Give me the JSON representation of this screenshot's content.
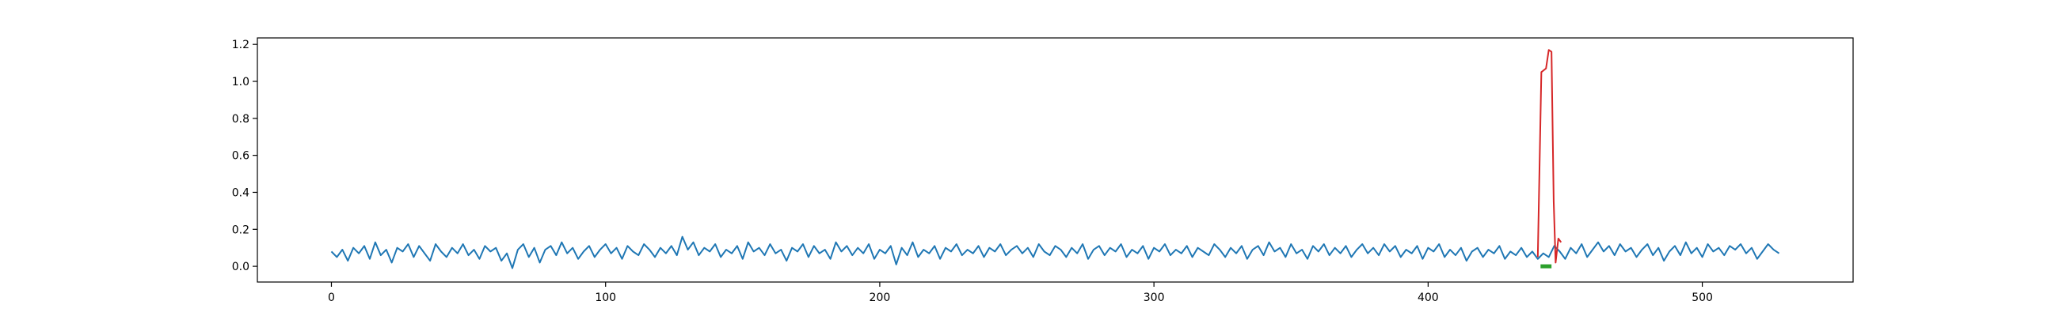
{
  "chart_data": {
    "type": "line",
    "title": "",
    "xlabel": "",
    "ylabel": "",
    "xlim": [
      -27,
      555
    ],
    "ylim": [
      -0.085,
      1.235
    ],
    "x_ticks": [
      0,
      100,
      200,
      300,
      400,
      500
    ],
    "y_ticks": [
      0.0,
      0.2,
      0.4,
      0.6,
      0.8,
      1.0,
      1.2
    ],
    "x_tick_labels": [
      "0",
      "100",
      "200",
      "300",
      "400",
      "500"
    ],
    "y_tick_labels": [
      "0.0",
      "0.2",
      "0.4",
      "0.6",
      "0.8",
      "1.0",
      "1.2"
    ],
    "grid": false,
    "legend": null,
    "colors": {
      "baseline": "#1f77b4",
      "anomaly": "#d62728",
      "marker": "#2ca02c"
    },
    "series": [
      {
        "color": "#1f77b4",
        "x_range": [
          0,
          528
        ],
        "noise_mean": 0.075,
        "noise_min": -0.01,
        "noise_max": 0.16,
        "points": [
          [
            0,
            0.08
          ],
          [
            2,
            0.05
          ],
          [
            4,
            0.09
          ],
          [
            6,
            0.03
          ],
          [
            8,
            0.1
          ],
          [
            10,
            0.07
          ],
          [
            12,
            0.11
          ],
          [
            14,
            0.04
          ],
          [
            16,
            0.13
          ],
          [
            18,
            0.06
          ],
          [
            20,
            0.09
          ],
          [
            22,
            0.02
          ],
          [
            24,
            0.1
          ],
          [
            26,
            0.08
          ],
          [
            28,
            0.12
          ],
          [
            30,
            0.05
          ],
          [
            32,
            0.11
          ],
          [
            34,
            0.07
          ],
          [
            36,
            0.03
          ],
          [
            38,
            0.12
          ],
          [
            40,
            0.08
          ],
          [
            42,
            0.05
          ],
          [
            44,
            0.1
          ],
          [
            46,
            0.07
          ],
          [
            48,
            0.12
          ],
          [
            50,
            0.06
          ],
          [
            52,
            0.09
          ],
          [
            54,
            0.04
          ],
          [
            56,
            0.11
          ],
          [
            58,
            0.08
          ],
          [
            60,
            0.1
          ],
          [
            62,
            0.03
          ],
          [
            64,
            0.07
          ],
          [
            66,
            -0.01
          ],
          [
            68,
            0.09
          ],
          [
            70,
            0.12
          ],
          [
            72,
            0.05
          ],
          [
            74,
            0.1
          ],
          [
            76,
            0.02
          ],
          [
            78,
            0.09
          ],
          [
            80,
            0.11
          ],
          [
            82,
            0.06
          ],
          [
            84,
            0.13
          ],
          [
            86,
            0.07
          ],
          [
            88,
            0.1
          ],
          [
            90,
            0.04
          ],
          [
            92,
            0.08
          ],
          [
            94,
            0.11
          ],
          [
            96,
            0.05
          ],
          [
            98,
            0.09
          ],
          [
            100,
            0.12
          ],
          [
            102,
            0.07
          ],
          [
            104,
            0.1
          ],
          [
            106,
            0.04
          ],
          [
            108,
            0.11
          ],
          [
            110,
            0.08
          ],
          [
            112,
            0.06
          ],
          [
            114,
            0.12
          ],
          [
            116,
            0.09
          ],
          [
            118,
            0.05
          ],
          [
            120,
            0.1
          ],
          [
            122,
            0.07
          ],
          [
            124,
            0.11
          ],
          [
            126,
            0.06
          ],
          [
            128,
            0.16
          ],
          [
            130,
            0.09
          ],
          [
            132,
            0.13
          ],
          [
            134,
            0.06
          ],
          [
            136,
            0.1
          ],
          [
            138,
            0.08
          ],
          [
            140,
            0.12
          ],
          [
            142,
            0.05
          ],
          [
            144,
            0.09
          ],
          [
            146,
            0.07
          ],
          [
            148,
            0.11
          ],
          [
            150,
            0.04
          ],
          [
            152,
            0.13
          ],
          [
            154,
            0.08
          ],
          [
            156,
            0.1
          ],
          [
            158,
            0.06
          ],
          [
            160,
            0.12
          ],
          [
            162,
            0.07
          ],
          [
            164,
            0.09
          ],
          [
            166,
            0.03
          ],
          [
            168,
            0.1
          ],
          [
            170,
            0.08
          ],
          [
            172,
            0.12
          ],
          [
            174,
            0.05
          ],
          [
            176,
            0.11
          ],
          [
            178,
            0.07
          ],
          [
            180,
            0.09
          ],
          [
            182,
            0.04
          ],
          [
            184,
            0.13
          ],
          [
            186,
            0.08
          ],
          [
            188,
            0.11
          ],
          [
            190,
            0.06
          ],
          [
            192,
            0.1
          ],
          [
            194,
            0.07
          ],
          [
            196,
            0.12
          ],
          [
            198,
            0.04
          ],
          [
            200,
            0.09
          ],
          [
            202,
            0.07
          ],
          [
            204,
            0.11
          ],
          [
            206,
            0.01
          ],
          [
            208,
            0.1
          ],
          [
            210,
            0.06
          ],
          [
            212,
            0.13
          ],
          [
            214,
            0.05
          ],
          [
            216,
            0.09
          ],
          [
            218,
            0.07
          ],
          [
            220,
            0.11
          ],
          [
            222,
            0.04
          ],
          [
            224,
            0.1
          ],
          [
            226,
            0.08
          ],
          [
            228,
            0.12
          ],
          [
            230,
            0.06
          ],
          [
            232,
            0.09
          ],
          [
            234,
            0.07
          ],
          [
            236,
            0.11
          ],
          [
            238,
            0.05
          ],
          [
            240,
            0.1
          ],
          [
            242,
            0.08
          ],
          [
            244,
            0.12
          ],
          [
            246,
            0.06
          ],
          [
            248,
            0.09
          ],
          [
            250,
            0.11
          ],
          [
            252,
            0.07
          ],
          [
            254,
            0.1
          ],
          [
            256,
            0.05
          ],
          [
            258,
            0.12
          ],
          [
            260,
            0.08
          ],
          [
            262,
            0.06
          ],
          [
            264,
            0.11
          ],
          [
            266,
            0.09
          ],
          [
            268,
            0.05
          ],
          [
            270,
            0.1
          ],
          [
            272,
            0.07
          ],
          [
            274,
            0.12
          ],
          [
            276,
            0.04
          ],
          [
            278,
            0.09
          ],
          [
            280,
            0.11
          ],
          [
            282,
            0.06
          ],
          [
            284,
            0.1
          ],
          [
            286,
            0.08
          ],
          [
            288,
            0.12
          ],
          [
            290,
            0.05
          ],
          [
            292,
            0.09
          ],
          [
            294,
            0.07
          ],
          [
            296,
            0.11
          ],
          [
            298,
            0.04
          ],
          [
            300,
            0.1
          ],
          [
            302,
            0.08
          ],
          [
            304,
            0.12
          ],
          [
            306,
            0.06
          ],
          [
            308,
            0.09
          ],
          [
            310,
            0.07
          ],
          [
            312,
            0.11
          ],
          [
            314,
            0.05
          ],
          [
            316,
            0.1
          ],
          [
            318,
            0.08
          ],
          [
            320,
            0.06
          ],
          [
            322,
            0.12
          ],
          [
            324,
            0.09
          ],
          [
            326,
            0.05
          ],
          [
            328,
            0.1
          ],
          [
            330,
            0.07
          ],
          [
            332,
            0.11
          ],
          [
            334,
            0.04
          ],
          [
            336,
            0.09
          ],
          [
            338,
            0.11
          ],
          [
            340,
            0.06
          ],
          [
            342,
            0.13
          ],
          [
            344,
            0.08
          ],
          [
            346,
            0.1
          ],
          [
            348,
            0.05
          ],
          [
            350,
            0.12
          ],
          [
            352,
            0.07
          ],
          [
            354,
            0.09
          ],
          [
            356,
            0.04
          ],
          [
            358,
            0.11
          ],
          [
            360,
            0.08
          ],
          [
            362,
            0.12
          ],
          [
            364,
            0.06
          ],
          [
            366,
            0.1
          ],
          [
            368,
            0.07
          ],
          [
            370,
            0.11
          ],
          [
            372,
            0.05
          ],
          [
            374,
            0.09
          ],
          [
            376,
            0.12
          ],
          [
            378,
            0.07
          ],
          [
            380,
            0.1
          ],
          [
            382,
            0.06
          ],
          [
            384,
            0.12
          ],
          [
            386,
            0.08
          ],
          [
            388,
            0.11
          ],
          [
            390,
            0.05
          ],
          [
            392,
            0.09
          ],
          [
            394,
            0.07
          ],
          [
            396,
            0.11
          ],
          [
            398,
            0.04
          ],
          [
            400,
            0.1
          ],
          [
            402,
            0.08
          ],
          [
            404,
            0.12
          ],
          [
            406,
            0.05
          ],
          [
            408,
            0.09
          ],
          [
            410,
            0.06
          ],
          [
            412,
            0.1
          ],
          [
            414,
            0.03
          ],
          [
            416,
            0.08
          ],
          [
            418,
            0.1
          ],
          [
            420,
            0.05
          ],
          [
            422,
            0.09
          ],
          [
            424,
            0.07
          ],
          [
            426,
            0.11
          ],
          [
            428,
            0.04
          ],
          [
            430,
            0.08
          ],
          [
            432,
            0.06
          ],
          [
            434,
            0.1
          ],
          [
            436,
            0.05
          ],
          [
            438,
            0.08
          ],
          [
            440,
            0.04
          ],
          [
            442,
            0.07
          ],
          [
            444,
            0.05
          ],
          [
            446,
            0.11
          ],
          [
            448,
            0.08
          ],
          [
            450,
            0.04
          ],
          [
            452,
            0.1
          ],
          [
            454,
            0.07
          ],
          [
            456,
            0.12
          ],
          [
            458,
            0.05
          ],
          [
            460,
            0.09
          ],
          [
            462,
            0.13
          ],
          [
            464,
            0.08
          ],
          [
            466,
            0.11
          ],
          [
            468,
            0.06
          ],
          [
            470,
            0.12
          ],
          [
            472,
            0.08
          ],
          [
            474,
            0.1
          ],
          [
            476,
            0.05
          ],
          [
            478,
            0.09
          ],
          [
            480,
            0.12
          ],
          [
            482,
            0.06
          ],
          [
            484,
            0.1
          ],
          [
            486,
            0.03
          ],
          [
            488,
            0.08
          ],
          [
            490,
            0.11
          ],
          [
            492,
            0.06
          ],
          [
            494,
            0.13
          ],
          [
            496,
            0.07
          ],
          [
            498,
            0.1
          ],
          [
            500,
            0.05
          ],
          [
            502,
            0.12
          ],
          [
            504,
            0.08
          ],
          [
            506,
            0.1
          ],
          [
            508,
            0.06
          ],
          [
            510,
            0.11
          ],
          [
            512,
            0.09
          ],
          [
            514,
            0.12
          ],
          [
            516,
            0.07
          ],
          [
            518,
            0.1
          ],
          [
            520,
            0.04
          ],
          [
            522,
            0.08
          ],
          [
            524,
            0.12
          ],
          [
            526,
            0.09
          ],
          [
            528,
            0.07
          ]
        ]
      },
      {
        "color": "#d62728",
        "points": [
          [
            440.0,
            0.05
          ],
          [
            441.3,
            1.05
          ],
          [
            443.0,
            1.07
          ],
          [
            444.0,
            1.17
          ],
          [
            445.0,
            1.16
          ],
          [
            445.8,
            0.35
          ],
          [
            446.5,
            0.02
          ],
          [
            447.5,
            0.15
          ],
          [
            448.5,
            0.13
          ]
        ]
      },
      {
        "color": "#2ca02c",
        "marker": "thick-bar",
        "points": [
          [
            441,
            0.0
          ],
          [
            445,
            0.0
          ]
        ]
      }
    ]
  }
}
